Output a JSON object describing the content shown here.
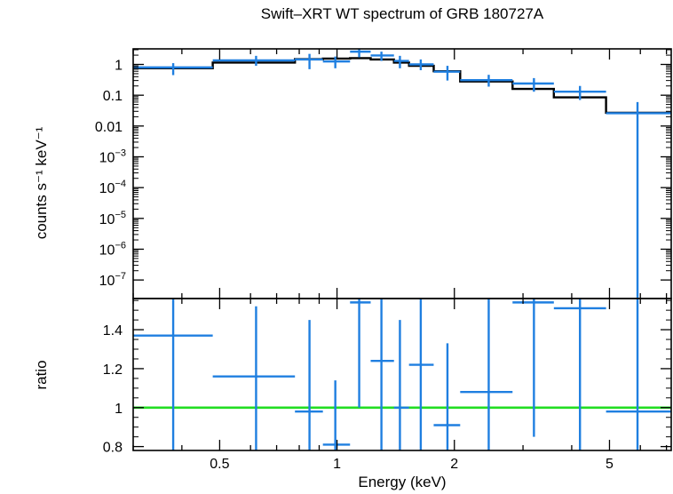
{
  "chart_data": {
    "type": "scatter",
    "title": "Swift–XRT WT spectrum of GRB 180727A",
    "xlabel": "Energy (keV)",
    "xscale": "log",
    "xlim": [
      0.3,
      7.2
    ],
    "x_ticks": [
      "0.5",
      "1",
      "2",
      "5"
    ],
    "x_tick_values": [
      0.5,
      1,
      2,
      5
    ],
    "panels": [
      {
        "name": "spectrum",
        "ylabel": "counts s⁻¹ keV⁻¹",
        "yscale": "log",
        "ylim": [
          2.5e-08,
          3.2
        ],
        "y_tick_values": [
          1,
          0.1,
          0.01,
          0.001,
          0.0001,
          1e-05,
          1e-06,
          1e-07
        ],
        "y_tick_labels": [
          {
            "base": "1",
            "exp": ""
          },
          {
            "base": "0.1",
            "exp": ""
          },
          {
            "base": "0.01",
            "exp": ""
          },
          {
            "base": "10",
            "exp": "−3"
          },
          {
            "base": "10",
            "exp": "−4"
          },
          {
            "base": "10",
            "exp": "−5"
          },
          {
            "base": "10",
            "exp": "−6"
          },
          {
            "base": "10",
            "exp": "−7"
          }
        ],
        "series": [
          {
            "kind": "data",
            "color": "#1f7fe0",
            "points": [
              {
                "x": 0.38,
                "xlo": 0.3,
                "xhi": 0.48,
                "y": 0.8,
                "ylo": 0.45,
                "yhi": 1.1
              },
              {
                "x": 0.62,
                "xlo": 0.48,
                "xhi": 0.78,
                "y": 1.35,
                "ylo": 0.9,
                "yhi": 1.9
              },
              {
                "x": 0.85,
                "xlo": 0.78,
                "xhi": 0.92,
                "y": 1.45,
                "ylo": 0.7,
                "yhi": 2.2
              },
              {
                "x": 0.99,
                "xlo": 0.92,
                "xhi": 1.08,
                "y": 1.25,
                "ylo": 0.75,
                "yhi": 1.8
              },
              {
                "x": 1.14,
                "xlo": 1.08,
                "xhi": 1.22,
                "y": 2.6,
                "ylo": 1.7,
                "yhi": 3.4
              },
              {
                "x": 1.3,
                "xlo": 1.22,
                "xhi": 1.4,
                "y": 1.95,
                "ylo": 1.3,
                "yhi": 2.6
              },
              {
                "x": 1.45,
                "xlo": 1.4,
                "xhi": 1.53,
                "y": 1.3,
                "ylo": 0.75,
                "yhi": 1.9
              },
              {
                "x": 1.64,
                "xlo": 1.53,
                "xhi": 1.77,
                "y": 1.0,
                "ylo": 0.65,
                "yhi": 1.45
              },
              {
                "x": 1.92,
                "xlo": 1.77,
                "xhi": 2.07,
                "y": 0.58,
                "ylo": 0.3,
                "yhi": 0.9
              },
              {
                "x": 2.45,
                "xlo": 2.07,
                "xhi": 2.82,
                "y": 0.31,
                "ylo": 0.19,
                "yhi": 0.46
              },
              {
                "x": 3.2,
                "xlo": 2.82,
                "xhi": 3.6,
                "y": 0.24,
                "ylo": 0.13,
                "yhi": 0.36
              },
              {
                "x": 4.2,
                "xlo": 3.6,
                "xhi": 4.9,
                "y": 0.13,
                "ylo": 0.07,
                "yhi": 0.2
              },
              {
                "x": 5.9,
                "xlo": 4.9,
                "xhi": 7.2,
                "y": 0.026,
                "ylo": 2.5e-08,
                "yhi": 0.06
              }
            ]
          },
          {
            "kind": "model",
            "color": "#000000",
            "steps": [
              {
                "xlo": 0.3,
                "xhi": 0.48,
                "y": 0.75
              },
              {
                "xlo": 0.48,
                "xhi": 0.78,
                "y": 1.15
              },
              {
                "xlo": 0.78,
                "xhi": 0.92,
                "y": 1.48
              },
              {
                "xlo": 0.92,
                "xhi": 1.08,
                "y": 1.55
              },
              {
                "xlo": 1.08,
                "xhi": 1.22,
                "y": 1.6
              },
              {
                "xlo": 1.22,
                "xhi": 1.4,
                "y": 1.45
              },
              {
                "xlo": 1.4,
                "xhi": 1.53,
                "y": 1.15
              },
              {
                "xlo": 1.53,
                "xhi": 1.77,
                "y": 0.9
              },
              {
                "xlo": 1.77,
                "xhi": 2.07,
                "y": 0.6
              },
              {
                "xlo": 2.07,
                "xhi": 2.82,
                "y": 0.28
              },
              {
                "xlo": 2.82,
                "xhi": 3.6,
                "y": 0.16
              },
              {
                "xlo": 3.6,
                "xhi": 4.9,
                "y": 0.085
              },
              {
                "xlo": 4.9,
                "xhi": 7.2,
                "y": 0.027
              }
            ]
          }
        ]
      },
      {
        "name": "ratio",
        "ylabel": "ratio",
        "yscale": "linear",
        "ylim": [
          0.78,
          1.56
        ],
        "y_tick_values": [
          0.8,
          1,
          1.2,
          1.4
        ],
        "y_tick_labels": [
          "0.8",
          "1",
          "1.2",
          "1.4"
        ],
        "reference_line": {
          "y": 1,
          "color": "#22dd22"
        },
        "series": [
          {
            "kind": "data",
            "color": "#1f7fe0",
            "points": [
              {
                "x": 0.38,
                "xlo": 0.3,
                "xhi": 0.48,
                "y": 1.37,
                "ylo": 0.78,
                "yhi": 1.56
              },
              {
                "x": 0.62,
                "xlo": 0.48,
                "xhi": 0.78,
                "y": 1.16,
                "ylo": 0.78,
                "yhi": 1.52
              },
              {
                "x": 0.85,
                "xlo": 0.78,
                "xhi": 0.92,
                "y": 0.98,
                "ylo": 0.78,
                "yhi": 1.45
              },
              {
                "x": 0.99,
                "xlo": 0.92,
                "xhi": 1.08,
                "y": 0.81,
                "ylo": 0.78,
                "yhi": 1.14
              },
              {
                "x": 1.14,
                "xlo": 1.08,
                "xhi": 1.22,
                "y": 1.54,
                "ylo": 1.0,
                "yhi": 1.56
              },
              {
                "x": 1.3,
                "xlo": 1.22,
                "xhi": 1.4,
                "y": 1.24,
                "ylo": 0.78,
                "yhi": 1.56
              },
              {
                "x": 1.45,
                "xlo": 1.4,
                "xhi": 1.53,
                "y": 1.0,
                "ylo": 0.78,
                "yhi": 1.45
              },
              {
                "x": 1.64,
                "xlo": 1.53,
                "xhi": 1.77,
                "y": 1.22,
                "ylo": 0.78,
                "yhi": 1.56
              },
              {
                "x": 1.92,
                "xlo": 1.77,
                "xhi": 2.07,
                "y": 0.91,
                "ylo": 0.78,
                "yhi": 1.33
              },
              {
                "x": 2.45,
                "xlo": 2.07,
                "xhi": 2.82,
                "y": 1.08,
                "ylo": 0.78,
                "yhi": 1.56
              },
              {
                "x": 3.2,
                "xlo": 2.82,
                "xhi": 3.6,
                "y": 1.54,
                "ylo": 0.85,
                "yhi": 1.56
              },
              {
                "x": 4.2,
                "xlo": 3.6,
                "xhi": 4.9,
                "y": 1.51,
                "ylo": 0.78,
                "yhi": 1.56
              },
              {
                "x": 5.9,
                "xlo": 4.9,
                "xhi": 7.2,
                "y": 0.98,
                "ylo": 0.78,
                "yhi": 1.56
              }
            ]
          }
        ]
      }
    ]
  }
}
